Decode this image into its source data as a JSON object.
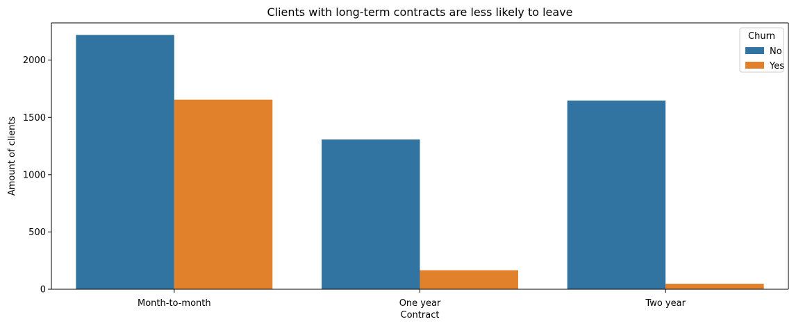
{
  "chart_data": {
    "type": "bar",
    "title": "Clients with long-term contracts are less likely to leave",
    "xlabel": "Contract",
    "ylabel": "Amount of clients",
    "categories": [
      "Month-to-month",
      "One year",
      "Two year"
    ],
    "series": [
      {
        "name": "No",
        "values": [
          2220,
          1307,
          1647
        ],
        "color": "#3274a1"
      },
      {
        "name": "Yes",
        "values": [
          1655,
          166,
          48
        ],
        "color": "#e1812c"
      }
    ],
    "ylim": [
      0,
      2325
    ],
    "yticks": [
      0,
      500,
      1000,
      1500,
      2000
    ],
    "grid": false,
    "legend": {
      "title": "Churn",
      "position": "top-right"
    }
  }
}
